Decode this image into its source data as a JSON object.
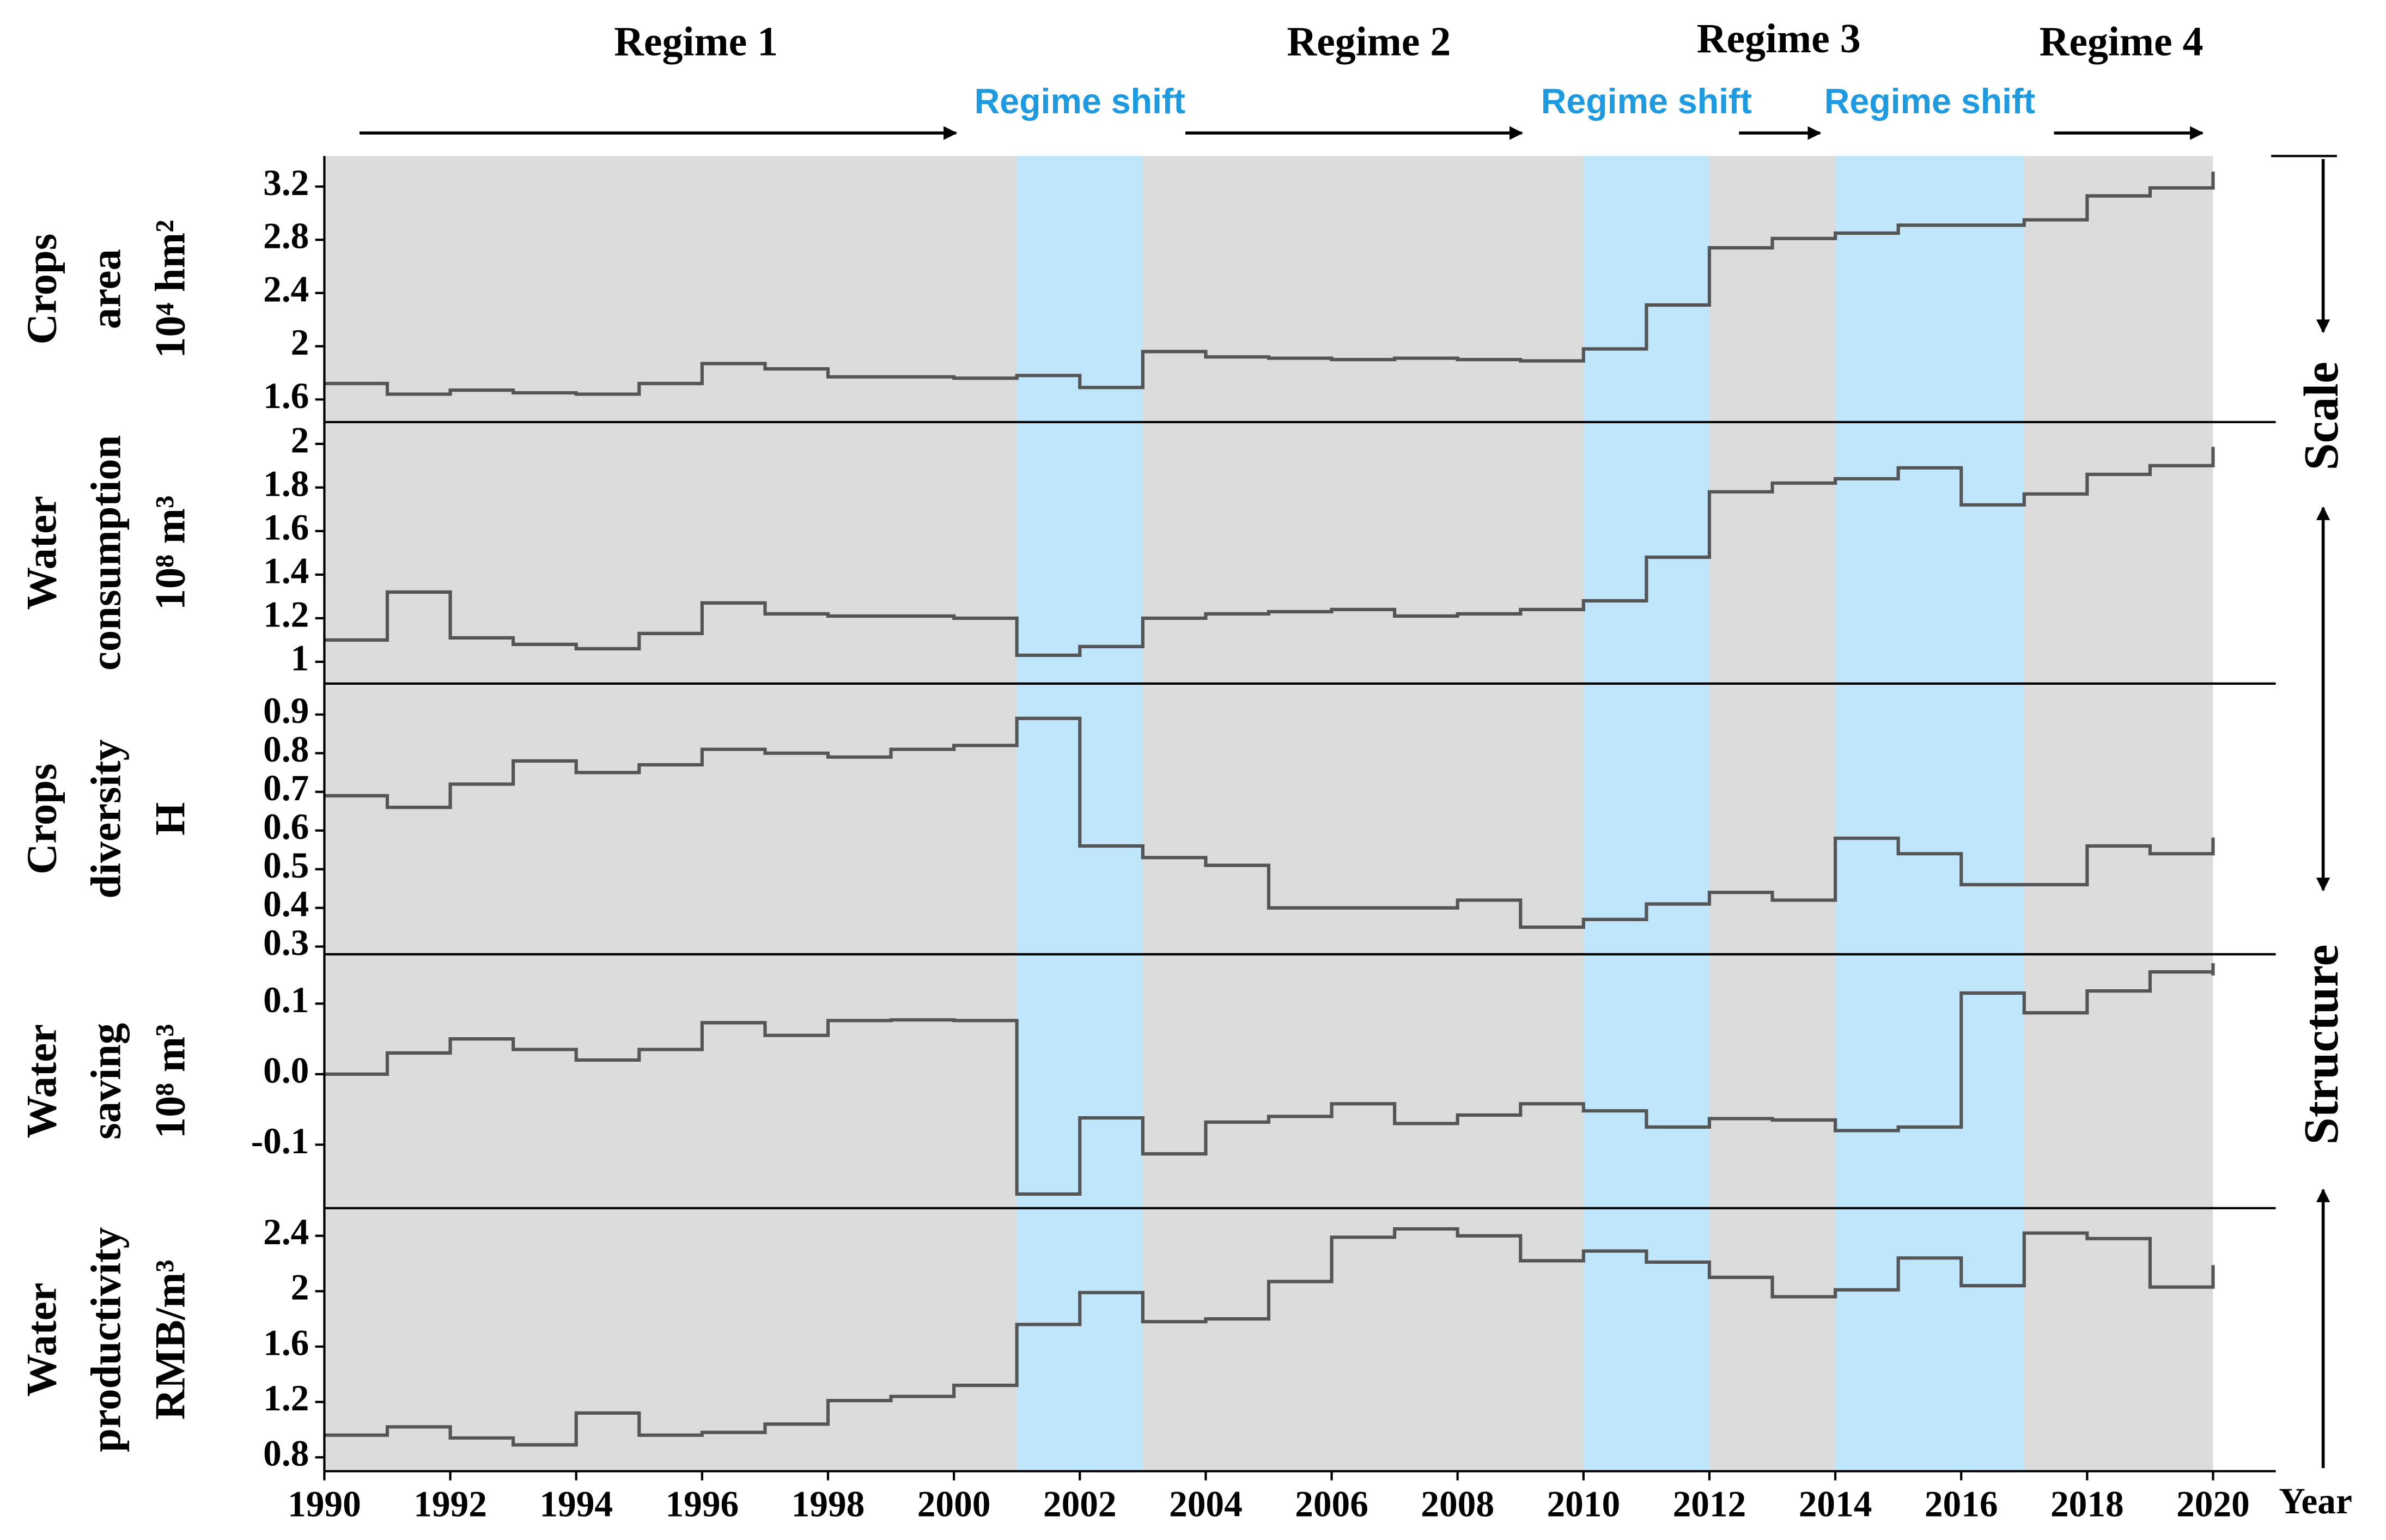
{
  "x_axis": {
    "label": "Year",
    "xlim": [
      1990,
      2020
    ],
    "xticks": [
      1990,
      1992,
      1994,
      1996,
      1998,
      2000,
      2002,
      2004,
      2006,
      2008,
      2010,
      2012,
      2014,
      2016,
      2018,
      2020
    ],
    "x": [
      1990,
      1991,
      1992,
      1993,
      1994,
      1995,
      1996,
      1997,
      1998,
      1999,
      2000,
      2001,
      2002,
      2003,
      2004,
      2005,
      2006,
      2007,
      2008,
      2009,
      2010,
      2011,
      2012,
      2013,
      2014,
      2015,
      2016,
      2017,
      2018,
      2019,
      2020
    ]
  },
  "regimes": [
    "Regime 1",
    "Regime 2",
    "Regime 3",
    "Regime 4"
  ],
  "regime_shifts": [
    {
      "label": "Regime shift",
      "start": 2001,
      "end": 2003
    },
    {
      "label": "Regime shift",
      "start": 2010,
      "end": 2012
    },
    {
      "label": "Regime shift",
      "start": 2014,
      "end": 2017
    }
  ],
  "side_labels": [
    "Scale",
    "Structure"
  ],
  "chart_data": [
    {
      "type": "step",
      "ylabel": [
        "Crops",
        "area",
        "10⁴ hm²"
      ],
      "color": "#555555",
      "ylim": [
        1.43,
        3.43
      ],
      "yticks": [
        1.6,
        2.0,
        2.4,
        2.8,
        3.2
      ],
      "values": [
        1.72,
        1.64,
        1.67,
        1.65,
        1.64,
        1.72,
        1.87,
        1.83,
        1.77,
        1.77,
        1.76,
        1.78,
        1.69,
        1.96,
        1.92,
        1.91,
        1.9,
        1.91,
        1.9,
        1.89,
        1.98,
        2.31,
        2.74,
        2.81,
        2.85,
        2.91,
        2.91,
        2.95,
        3.13,
        3.19,
        3.22
      ]
    },
    {
      "type": "step",
      "ylabel": [
        "Water",
        "consumption",
        "10⁸ m³"
      ],
      "color": "#555555",
      "ylim": [
        0.9,
        2.1
      ],
      "yticks": [
        1.0,
        1.2,
        1.4,
        1.6,
        1.8,
        2.0
      ],
      "values": [
        1.1,
        1.32,
        1.11,
        1.08,
        1.06,
        1.13,
        1.27,
        1.22,
        1.21,
        1.21,
        1.2,
        1.03,
        1.07,
        1.2,
        1.22,
        1.23,
        1.24,
        1.21,
        1.22,
        1.24,
        1.28,
        1.48,
        1.78,
        1.82,
        1.84,
        1.89,
        1.72,
        1.77,
        1.86,
        1.9,
        1.93
      ]
    },
    {
      "type": "step",
      "ylabel": [
        "Crops",
        "diversity",
        "H"
      ],
      "color": "#555555",
      "ylim": [
        0.28,
        0.98
      ],
      "yticks": [
        0.3,
        0.4,
        0.5,
        0.6,
        0.7,
        0.8,
        0.9
      ],
      "values": [
        0.69,
        0.66,
        0.72,
        0.78,
        0.75,
        0.77,
        0.81,
        0.8,
        0.79,
        0.81,
        0.82,
        0.89,
        0.56,
        0.53,
        0.51,
        0.4,
        0.4,
        0.4,
        0.42,
        0.35,
        0.37,
        0.41,
        0.44,
        0.42,
        0.58,
        0.54,
        0.46,
        0.46,
        0.56,
        0.54,
        0.55
      ]
    },
    {
      "type": "step",
      "ylabel": [
        "Water",
        "saving",
        "10⁸ m³"
      ],
      "color": "#555555",
      "ylim": [
        -0.19,
        0.17
      ],
      "yticks": [
        -0.1,
        {
          "value": 0,
          "label": "0.0"
        },
        0.1
      ],
      "values": [
        0.0,
        0.03,
        0.05,
        0.035,
        0.02,
        0.035,
        0.073,
        0.055,
        0.076,
        0.077,
        0.076,
        -0.17,
        -0.062,
        -0.113,
        -0.068,
        -0.06,
        -0.042,
        -0.07,
        -0.058,
        -0.042,
        -0.052,
        -0.075,
        -0.063,
        -0.065,
        -0.08,
        -0.075,
        0.115,
        0.087,
        0.118,
        0.145,
        0.14
      ]
    },
    {
      "type": "step",
      "ylabel": [
        "Water",
        "productivity",
        "RMB/m³"
      ],
      "color": "#555555",
      "ylim": [
        0.7,
        2.6
      ],
      "yticks": [
        0.8,
        1.2,
        1.6,
        2.0,
        2.4
      ],
      "values": [
        0.96,
        1.02,
        0.94,
        0.89,
        1.12,
        0.96,
        0.98,
        1.04,
        1.21,
        1.24,
        1.32,
        1.76,
        1.99,
        1.78,
        1.8,
        2.07,
        2.39,
        2.45,
        2.4,
        2.22,
        2.29,
        2.21,
        2.1,
        1.96,
        2.01,
        2.24,
        2.04,
        2.42,
        2.38,
        2.03,
        2.1
      ]
    }
  ]
}
